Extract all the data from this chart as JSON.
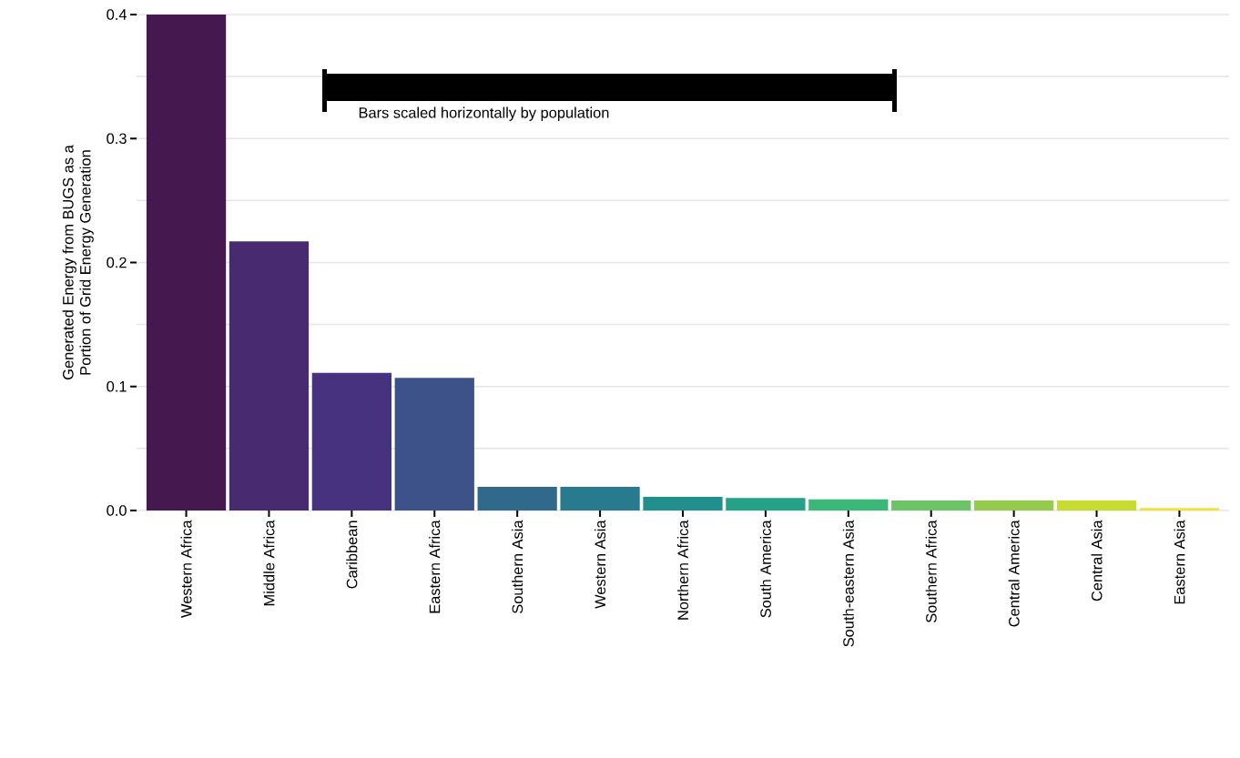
{
  "chart_data": {
    "type": "bar",
    "ylabel": "Generated Energy from BUGS as a\nPortion of Grid Energy Generation",
    "annotations": [
      "Bars scaled horizontally by population"
    ],
    "categories": [
      "Western Africa",
      "Middle Africa",
      "Caribbean",
      "Eastern Africa",
      "Southern Asia",
      "Western Asia",
      "Northern Africa",
      "South America",
      "South-eastern Asia",
      "Southern Africa",
      "Central America",
      "Central Asia",
      "Eastern Asia"
    ],
    "values": [
      0.4,
      0.217,
      0.111,
      0.107,
      0.019,
      0.019,
      0.011,
      0.01,
      0.009,
      0.008,
      0.008,
      0.008,
      0.002
    ],
    "colors": [
      "#45194f",
      "#482a70",
      "#46327e",
      "#3e528a",
      "#30698c",
      "#287b8e",
      "#21908c",
      "#24a285",
      "#3bb878",
      "#6cc466",
      "#95cb4a",
      "#c7db31",
      "#f4e13c"
    ],
    "ylim": [
      0,
      0.4
    ],
    "yticks": [
      {
        "value": 0.0,
        "label": "0.0"
      },
      {
        "value": 0.05,
        "label": null
      },
      {
        "value": 0.1,
        "label": "0.1"
      },
      {
        "value": 0.15,
        "label": null
      },
      {
        "value": 0.2,
        "label": "0.2"
      },
      {
        "value": 0.25,
        "label": null
      },
      {
        "value": 0.3,
        "label": "0.3"
      },
      {
        "value": 0.35,
        "label": null
      },
      {
        "value": 0.4,
        "label": "0.4"
      }
    ],
    "grid": "y"
  }
}
